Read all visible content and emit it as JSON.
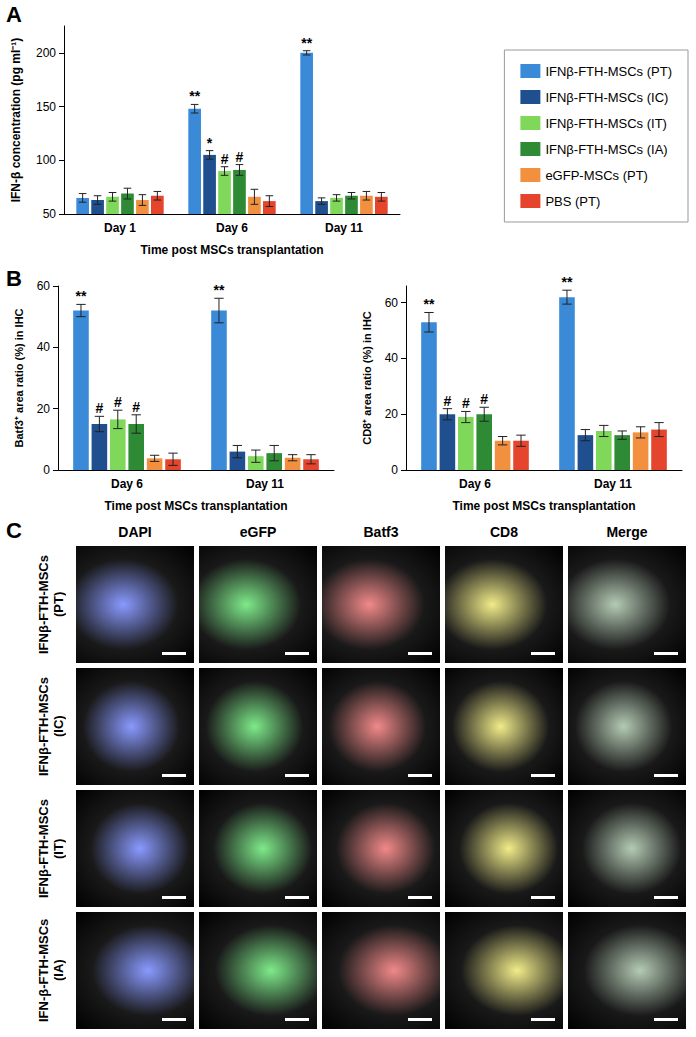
{
  "panel_labels": [
    "A",
    "B",
    "C"
  ],
  "chart_data": [
    {
      "type": "bar",
      "y_label": "IFN-β concentration (pg ml⁻¹)",
      "x_label": "Time post MSCs transplantation",
      "categories": [
        "Day 1",
        "Day 6",
        "Day 11"
      ],
      "ylim": [
        50,
        225
      ],
      "yticks": [
        50,
        100,
        150,
        200
      ],
      "grid": false,
      "legend": "right",
      "series": [
        {
          "name": "IFNβ-FTH-MSCs (PT)",
          "color": "#3b8ad8",
          "values": [
            65,
            148,
            200
          ],
          "error": [
            4,
            4,
            2
          ],
          "annotations": [
            null,
            "**",
            "**"
          ]
        },
        {
          "name": "IFNβ-FTH-MSCs (IC)",
          "color": "#1f4f8e",
          "values": [
            63,
            105,
            62
          ],
          "error": [
            4,
            4,
            3
          ],
          "annotations": [
            null,
            "*",
            null
          ]
        },
        {
          "name": "IFNβ-FTH-MSCs (IT)",
          "color": "#7fd85a",
          "values": [
            66,
            90,
            65
          ],
          "error": [
            4,
            4,
            3
          ],
          "annotations": [
            null,
            "#",
            null
          ]
        },
        {
          "name": "IFNβ-FTH-MSCs (IA)",
          "color": "#2f8a35",
          "values": [
            69,
            91,
            67
          ],
          "error": [
            5,
            5,
            3
          ],
          "annotations": [
            null,
            "#",
            null
          ]
        },
        {
          "name": "eGFP-MSCs (PT)",
          "color": "#f29040",
          "values": [
            63,
            66,
            67
          ],
          "error": [
            5,
            7,
            4
          ],
          "annotations": [
            null,
            null,
            null
          ]
        },
        {
          "name": "PBS (PT)",
          "color": "#e5452d",
          "values": [
            67,
            62,
            66
          ],
          "error": [
            4,
            5,
            4
          ],
          "annotations": [
            null,
            null,
            null
          ]
        }
      ]
    },
    {
      "type": "bar",
      "y_label": "Batf3⁺ area ratio (%) in IHC",
      "x_label": "Time post MSCs transplantation",
      "categories": [
        "Day 6",
        "Day 11"
      ],
      "ylim": [
        0,
        60
      ],
      "yticks": [
        0,
        20,
        40,
        60
      ],
      "grid": false,
      "series": [
        {
          "name": "IFNβ-FTH-MSCs (PT)",
          "color": "#3b8ad8",
          "values": [
            52,
            52
          ],
          "error": [
            2,
            4
          ],
          "annotations": [
            "**",
            "**"
          ]
        },
        {
          "name": "IFNβ-FTH-MSCs (IC)",
          "color": "#1f4f8e",
          "values": [
            15,
            6
          ],
          "error": [
            2.5,
            2
          ],
          "annotations": [
            "#",
            null
          ]
        },
        {
          "name": "IFNβ-FTH-MSCs (IT)",
          "color": "#7fd85a",
          "values": [
            16.5,
            4.5
          ],
          "error": [
            3,
            2
          ],
          "annotations": [
            "#",
            null
          ]
        },
        {
          "name": "IFNβ-FTH-MSCs (IA)",
          "color": "#2f8a35",
          "values": [
            15,
            5.5
          ],
          "error": [
            3,
            2.5
          ],
          "annotations": [
            "#",
            null
          ]
        },
        {
          "name": "eGFP-MSCs (PT)",
          "color": "#f29040",
          "values": [
            3.8,
            4
          ],
          "error": [
            1,
            1
          ],
          "annotations": [
            null,
            null
          ]
        },
        {
          "name": "PBS (PT)",
          "color": "#e5452d",
          "values": [
            3.5,
            3.5
          ],
          "error": [
            2,
            1.5
          ],
          "annotations": [
            null,
            null
          ]
        }
      ]
    },
    {
      "type": "bar",
      "y_label": "CD8⁺ area ratio (%) in IHC",
      "x_label": "Time post MSCs transplantation",
      "categories": [
        "Day 6",
        "Day 11"
      ],
      "ylim": [
        0,
        66
      ],
      "yticks": [
        0,
        20,
        40,
        60
      ],
      "grid": false,
      "series": [
        {
          "name": "IFNβ-FTH-MSCs (PT)",
          "color": "#3b8ad8",
          "values": [
            53,
            62
          ],
          "error": [
            3.5,
            2.5
          ],
          "annotations": [
            "**",
            "**"
          ]
        },
        {
          "name": "IFNβ-FTH-MSCs (IC)",
          "color": "#1f4f8e",
          "values": [
            20,
            12.5
          ],
          "error": [
            2,
            2
          ],
          "annotations": [
            "#",
            null
          ]
        },
        {
          "name": "IFNβ-FTH-MSCs (IT)",
          "color": "#7fd85a",
          "values": [
            19,
            14
          ],
          "error": [
            2,
            2
          ],
          "annotations": [
            "#",
            null
          ]
        },
        {
          "name": "IFNβ-FTH-MSCs (IA)",
          "color": "#2f8a35",
          "values": [
            20,
            12.5
          ],
          "error": [
            2.5,
            1.5
          ],
          "annotations": [
            "#",
            null
          ]
        },
        {
          "name": "eGFP-MSCs (PT)",
          "color": "#f29040",
          "values": [
            10.5,
            13.5
          ],
          "error": [
            1.5,
            2
          ],
          "annotations": [
            null,
            null
          ]
        },
        {
          "name": "PBS (PT)",
          "color": "#e5452d",
          "values": [
            10.5,
            14.5
          ],
          "error": [
            2,
            2.5
          ],
          "annotations": [
            null,
            null
          ]
        }
      ]
    }
  ],
  "panel_c": {
    "columns": [
      "DAPI",
      "eGFP",
      "Batf3",
      "CD8",
      "Merge"
    ],
    "rows": [
      "IFNβ-FTH-MSCs (PT)",
      "IFNβ-FTH-MSCs (IC)",
      "IFNβ-FTH-MSCs (IT)",
      "IFN-β-FTH-MSCs (IA)"
    ]
  }
}
